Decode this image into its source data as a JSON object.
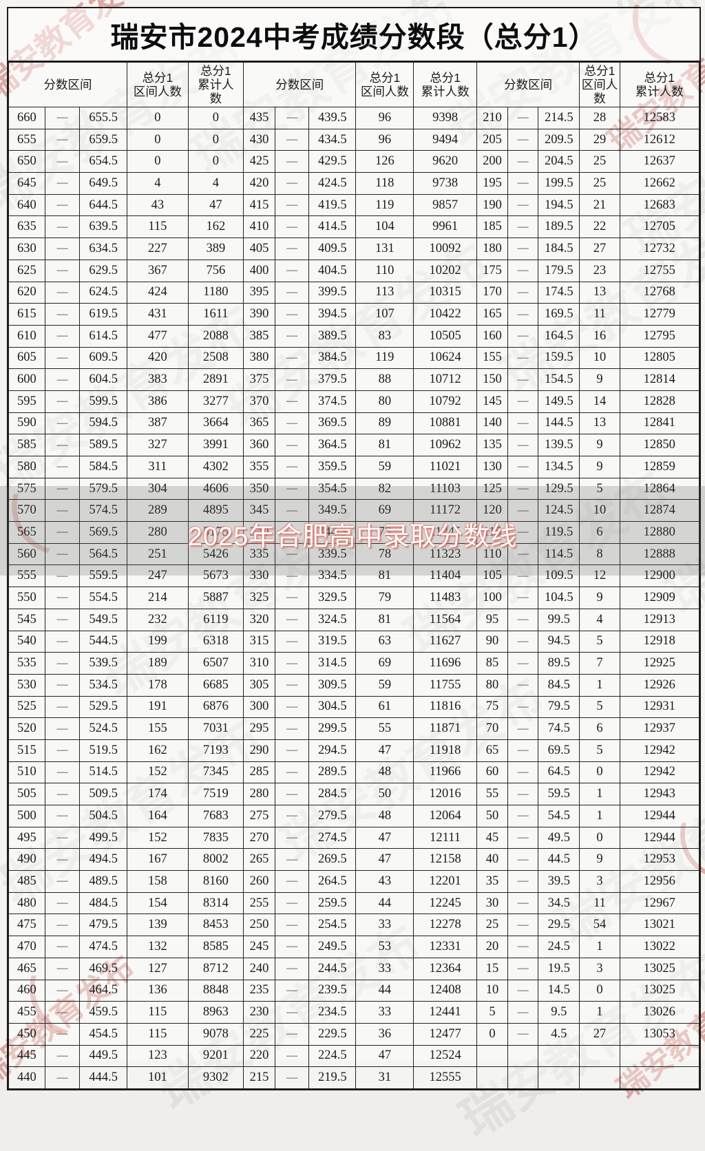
{
  "title": "瑞安市2024中考成绩分数段（总分1）",
  "headers": {
    "range": "分数区间",
    "interval_count": "总分1\n区间人数",
    "cumulative_count_narrow": "总分1\n累计人\n数",
    "cumulative_count": "总分1\n累计人数"
  },
  "watermark": {
    "overlay_text": "2025年合肥高中录取分数线",
    "stamp_text": "瑞安教育发布",
    "paren_glyph": "（"
  },
  "colors": {
    "paper": "#f5f4f1",
    "border": "#1c1c1c",
    "band_overlay": "rgba(88,86,84,0.22)",
    "stamp_red": "#c76b64",
    "overlay_red": "#d05c50"
  },
  "table": {
    "dash": "—",
    "rows": [
      [
        "660",
        "—",
        "655.5",
        "0",
        "0",
        "435",
        "—",
        "439.5",
        "96",
        "9398",
        "210",
        "—",
        "214.5",
        "28",
        "12583"
      ],
      [
        "655",
        "—",
        "659.5",
        "0",
        "0",
        "430",
        "—",
        "434.5",
        "96",
        "9494",
        "205",
        "—",
        "209.5",
        "29",
        "12612"
      ],
      [
        "650",
        "—",
        "654.5",
        "0",
        "0",
        "425",
        "—",
        "429.5",
        "126",
        "9620",
        "200",
        "—",
        "204.5",
        "25",
        "12637"
      ],
      [
        "645",
        "—",
        "649.5",
        "4",
        "4",
        "420",
        "—",
        "424.5",
        "118",
        "9738",
        "195",
        "—",
        "199.5",
        "25",
        "12662"
      ],
      [
        "640",
        "—",
        "644.5",
        "43",
        "47",
        "415",
        "—",
        "419.5",
        "119",
        "9857",
        "190",
        "—",
        "194.5",
        "21",
        "12683"
      ],
      [
        "635",
        "—",
        "639.5",
        "115",
        "162",
        "410",
        "—",
        "414.5",
        "104",
        "9961",
        "185",
        "—",
        "189.5",
        "22",
        "12705"
      ],
      [
        "630",
        "—",
        "634.5",
        "227",
        "389",
        "405",
        "—",
        "409.5",
        "131",
        "10092",
        "180",
        "—",
        "184.5",
        "27",
        "12732"
      ],
      [
        "625",
        "—",
        "629.5",
        "367",
        "756",
        "400",
        "—",
        "404.5",
        "110",
        "10202",
        "175",
        "—",
        "179.5",
        "23",
        "12755"
      ],
      [
        "620",
        "—",
        "624.5",
        "424",
        "1180",
        "395",
        "—",
        "399.5",
        "113",
        "10315",
        "170",
        "—",
        "174.5",
        "13",
        "12768"
      ],
      [
        "615",
        "—",
        "619.5",
        "431",
        "1611",
        "390",
        "—",
        "394.5",
        "107",
        "10422",
        "165",
        "—",
        "169.5",
        "11",
        "12779"
      ],
      [
        "610",
        "—",
        "614.5",
        "477",
        "2088",
        "385",
        "—",
        "389.5",
        "83",
        "10505",
        "160",
        "—",
        "164.5",
        "16",
        "12795"
      ],
      [
        "605",
        "—",
        "609.5",
        "420",
        "2508",
        "380",
        "—",
        "384.5",
        "119",
        "10624",
        "155",
        "—",
        "159.5",
        "10",
        "12805"
      ],
      [
        "600",
        "—",
        "604.5",
        "383",
        "2891",
        "375",
        "—",
        "379.5",
        "88",
        "10712",
        "150",
        "—",
        "154.5",
        "9",
        "12814"
      ],
      [
        "595",
        "—",
        "599.5",
        "386",
        "3277",
        "370",
        "—",
        "374.5",
        "80",
        "10792",
        "145",
        "—",
        "149.5",
        "14",
        "12828"
      ],
      [
        "590",
        "—",
        "594.5",
        "387",
        "3664",
        "365",
        "—",
        "369.5",
        "89",
        "10881",
        "140",
        "—",
        "144.5",
        "13",
        "12841"
      ],
      [
        "585",
        "—",
        "589.5",
        "327",
        "3991",
        "360",
        "—",
        "364.5",
        "81",
        "10962",
        "135",
        "—",
        "139.5",
        "9",
        "12850"
      ],
      [
        "580",
        "—",
        "584.5",
        "311",
        "4302",
        "355",
        "—",
        "359.5",
        "59",
        "11021",
        "130",
        "—",
        "134.5",
        "9",
        "12859"
      ],
      [
        "575",
        "—",
        "579.5",
        "304",
        "4606",
        "350",
        "—",
        "354.5",
        "82",
        "11103",
        "125",
        "—",
        "129.5",
        "5",
        "12864"
      ],
      [
        "570",
        "—",
        "574.5",
        "289",
        "4895",
        "345",
        "—",
        "349.5",
        "69",
        "11172",
        "120",
        "—",
        "124.5",
        "10",
        "12874"
      ],
      [
        "565",
        "—",
        "569.5",
        "280",
        "5175",
        "340",
        "—",
        "344.5",
        "73",
        "11245",
        "115",
        "—",
        "119.5",
        "6",
        "12880"
      ],
      [
        "560",
        "—",
        "564.5",
        "251",
        "5426",
        "335",
        "—",
        "339.5",
        "78",
        "11323",
        "110",
        "—",
        "114.5",
        "8",
        "12888"
      ],
      [
        "555",
        "—",
        "559.5",
        "247",
        "5673",
        "330",
        "—",
        "334.5",
        "81",
        "11404",
        "105",
        "—",
        "109.5",
        "12",
        "12900"
      ],
      [
        "550",
        "—",
        "554.5",
        "214",
        "5887",
        "325",
        "—",
        "329.5",
        "79",
        "11483",
        "100",
        "—",
        "104.5",
        "9",
        "12909"
      ],
      [
        "545",
        "—",
        "549.5",
        "232",
        "6119",
        "320",
        "—",
        "324.5",
        "81",
        "11564",
        "95",
        "—",
        "99.5",
        "4",
        "12913"
      ],
      [
        "540",
        "—",
        "544.5",
        "199",
        "6318",
        "315",
        "—",
        "319.5",
        "63",
        "11627",
        "90",
        "—",
        "94.5",
        "5",
        "12918"
      ],
      [
        "535",
        "—",
        "539.5",
        "189",
        "6507",
        "310",
        "—",
        "314.5",
        "69",
        "11696",
        "85",
        "—",
        "89.5",
        "7",
        "12925"
      ],
      [
        "530",
        "—",
        "534.5",
        "178",
        "6685",
        "305",
        "—",
        "309.5",
        "59",
        "11755",
        "80",
        "—",
        "84.5",
        "1",
        "12926"
      ],
      [
        "525",
        "—",
        "529.5",
        "191",
        "6876",
        "300",
        "—",
        "304.5",
        "61",
        "11816",
        "75",
        "—",
        "79.5",
        "5",
        "12931"
      ],
      [
        "520",
        "—",
        "524.5",
        "155",
        "7031",
        "295",
        "—",
        "299.5",
        "55",
        "11871",
        "70",
        "—",
        "74.5",
        "6",
        "12937"
      ],
      [
        "515",
        "—",
        "519.5",
        "162",
        "7193",
        "290",
        "—",
        "294.5",
        "47",
        "11918",
        "65",
        "—",
        "69.5",
        "5",
        "12942"
      ],
      [
        "510",
        "—",
        "514.5",
        "152",
        "7345",
        "285",
        "—",
        "289.5",
        "48",
        "11966",
        "60",
        "—",
        "64.5",
        "0",
        "12942"
      ],
      [
        "505",
        "—",
        "509.5",
        "174",
        "7519",
        "280",
        "—",
        "284.5",
        "50",
        "12016",
        "55",
        "—",
        "59.5",
        "1",
        "12943"
      ],
      [
        "500",
        "—",
        "504.5",
        "164",
        "7683",
        "275",
        "—",
        "279.5",
        "48",
        "12064",
        "50",
        "—",
        "54.5",
        "1",
        "12944"
      ],
      [
        "495",
        "—",
        "499.5",
        "152",
        "7835",
        "270",
        "—",
        "274.5",
        "47",
        "12111",
        "45",
        "—",
        "49.5",
        "0",
        "12944"
      ],
      [
        "490",
        "—",
        "494.5",
        "167",
        "8002",
        "265",
        "—",
        "269.5",
        "47",
        "12158",
        "40",
        "—",
        "44.5",
        "9",
        "12953"
      ],
      [
        "485",
        "—",
        "489.5",
        "158",
        "8160",
        "260",
        "—",
        "264.5",
        "43",
        "12201",
        "35",
        "—",
        "39.5",
        "3",
        "12956"
      ],
      [
        "480",
        "—",
        "484.5",
        "154",
        "8314",
        "255",
        "—",
        "259.5",
        "44",
        "12245",
        "30",
        "—",
        "34.5",
        "11",
        "12967"
      ],
      [
        "475",
        "—",
        "479.5",
        "139",
        "8453",
        "250",
        "—",
        "254.5",
        "33",
        "12278",
        "25",
        "—",
        "29.5",
        "54",
        "13021"
      ],
      [
        "470",
        "—",
        "474.5",
        "132",
        "8585",
        "245",
        "—",
        "249.5",
        "53",
        "12331",
        "20",
        "—",
        "24.5",
        "1",
        "13022"
      ],
      [
        "465",
        "—",
        "469.5",
        "127",
        "8712",
        "240",
        "—",
        "244.5",
        "33",
        "12364",
        "15",
        "—",
        "19.5",
        "3",
        "13025"
      ],
      [
        "460",
        "—",
        "464.5",
        "136",
        "8848",
        "235",
        "—",
        "239.5",
        "44",
        "12408",
        "10",
        "—",
        "14.5",
        "0",
        "13025"
      ],
      [
        "455",
        "—",
        "459.5",
        "115",
        "8963",
        "230",
        "—",
        "234.5",
        "33",
        "12441",
        "5",
        "—",
        "9.5",
        "1",
        "13026"
      ],
      [
        "450",
        "—",
        "454.5",
        "115",
        "9078",
        "225",
        "—",
        "229.5",
        "36",
        "12477",
        "0",
        "—",
        "4.5",
        "27",
        "13053"
      ],
      [
        "445",
        "—",
        "449.5",
        "123",
        "9201",
        "220",
        "—",
        "224.5",
        "47",
        "12524",
        "",
        "",
        "",
        "",
        ""
      ],
      [
        "440",
        "—",
        "444.5",
        "101",
        "9302",
        "215",
        "—",
        "219.5",
        "31",
        "12555",
        "",
        "",
        "",
        "",
        ""
      ]
    ]
  }
}
